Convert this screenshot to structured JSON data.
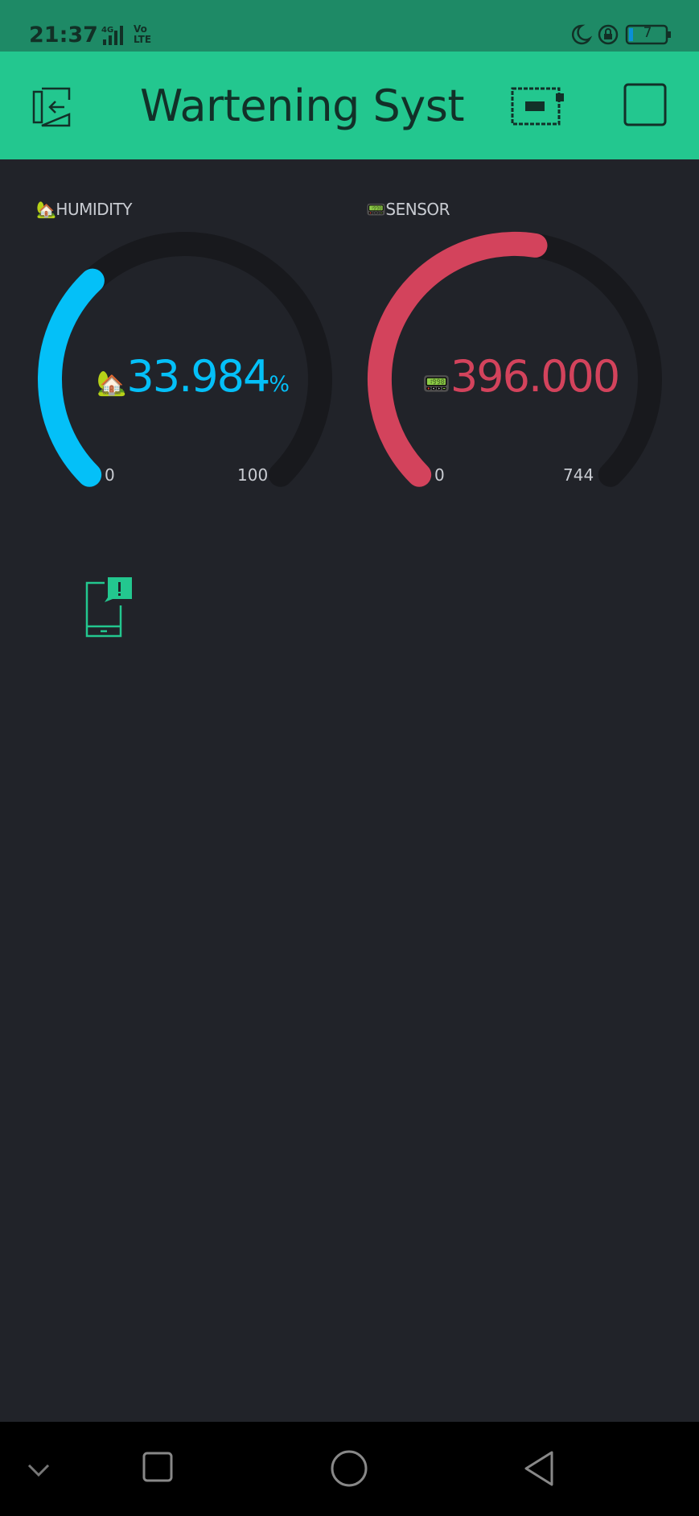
{
  "status_bar": {
    "time": "21:37",
    "network": "4G",
    "volte": "Vo LTE",
    "battery": "7",
    "icons": [
      "moon-icon",
      "rotation-lock-icon",
      "battery-icon"
    ]
  },
  "app_bar": {
    "title": "Wartening System",
    "buttons": [
      "exit-icon",
      "device-icon",
      "stop-icon"
    ]
  },
  "gauges": [
    {
      "label": "HUMIDITY",
      "label_emoji": "🏡",
      "value_emoji": "🏡",
      "value": "33.984",
      "unit": "%",
      "min": "0",
      "max": "100",
      "level": 0.33984,
      "color": "#04c0f8"
    },
    {
      "label": "SENSOR",
      "label_emoji": "📟",
      "value_emoji": "📟",
      "value": "396.000",
      "unit": "",
      "min": "0",
      "max": "744",
      "level": 0.5323,
      "color": "#d3435c"
    }
  ],
  "notification_widget": {
    "icon": "phone-notification-icon"
  },
  "nav_bar": {
    "buttons": [
      "chevron-down-icon",
      "recents-icon",
      "home-icon",
      "back-icon"
    ]
  }
}
